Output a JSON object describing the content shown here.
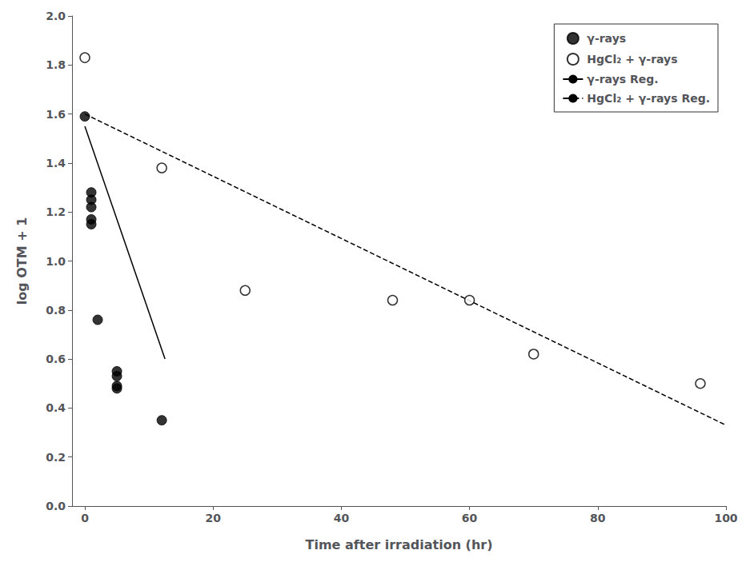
{
  "chart_data": {
    "type": "scatter",
    "xlabel": "Time after irradiation (hr)",
    "ylabel": "log OTM + 1",
    "xlim": [
      -2,
      100
    ],
    "ylim": [
      0.0,
      2.0
    ],
    "xticks": [
      0,
      20,
      40,
      60,
      80,
      100
    ],
    "yticks": [
      {
        "value": 0.0,
        "label": "0.0"
      },
      0.2,
      0.4,
      0.6,
      0.8,
      {
        "value": 1.0,
        "label": "1.0"
      },
      1.2,
      1.4,
      1.6,
      1.8,
      {
        "value": 2.0,
        "label": "2.0"
      }
    ],
    "grid": false,
    "legend": "upper right",
    "series": [
      {
        "name": "γ-rays",
        "type": "scatter",
        "color": "black",
        "marker": "filled_circle",
        "x": [
          0,
          1,
          1,
          1,
          1,
          1,
          2,
          5,
          5,
          5,
          5,
          12
        ],
        "values": [
          1.59,
          1.28,
          1.25,
          1.22,
          1.17,
          1.15,
          0.76,
          0.49,
          0.48,
          0.53,
          0.55,
          0.35
        ]
      },
      {
        "name": "HgCl₂ + γ-rays",
        "type": "scatter",
        "color": "black",
        "marker": "open_circle",
        "x": [
          0,
          12,
          25,
          48,
          60,
          70,
          96
        ],
        "values": [
          1.83,
          1.38,
          0.88,
          0.84,
          0.84,
          0.62,
          0.5
        ]
      },
      {
        "name": "γ-rays Reg.",
        "type": "line",
        "color": "black",
        "line_style": "solid",
        "x": [
          0,
          12.5
        ],
        "values": [
          1.55,
          0.6
        ]
      },
      {
        "name": "HgCl₂ + γ-rays Reg.",
        "type": "line",
        "color": "black",
        "line_style": "dashed",
        "x": [
          0,
          100
        ],
        "values": [
          1.6,
          0.33
        ]
      }
    ]
  }
}
